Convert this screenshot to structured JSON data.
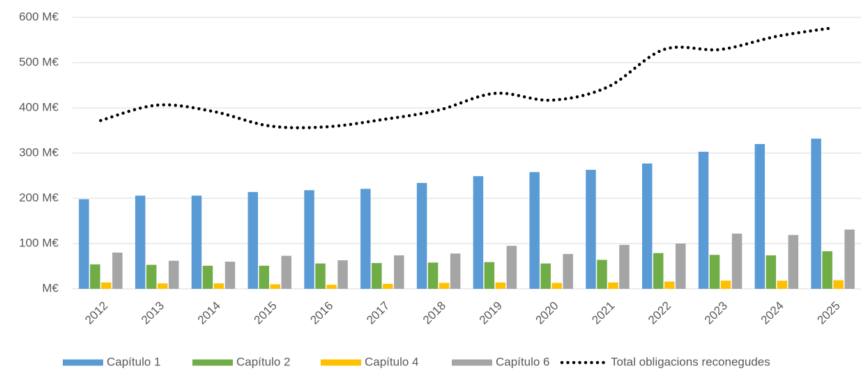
{
  "chart_data": {
    "type": "bar",
    "categories": [
      "2012",
      "2013",
      "2014",
      "2015",
      "2016",
      "2017",
      "2018",
      "2019",
      "2020",
      "2021",
      "2022",
      "2023",
      "2024",
      "2025"
    ],
    "series": [
      {
        "name": "Capítulo 1",
        "color": "#5b9bd5",
        "values": [
          198,
          206,
          206,
          214,
          218,
          221,
          234,
          249,
          258,
          263,
          277,
          303,
          320,
          332
        ]
      },
      {
        "name": "Capítulo 2",
        "color": "#70ad47",
        "values": [
          54,
          53,
          51,
          51,
          56,
          57,
          58,
          59,
          56,
          64,
          79,
          75,
          74,
          83
        ]
      },
      {
        "name": "Capítulo 4",
        "color": "#ffc000",
        "values": [
          14,
          12,
          12,
          10,
          9,
          11,
          13,
          14,
          13,
          14,
          16,
          18,
          18,
          19
        ]
      },
      {
        "name": "Capítulo 6",
        "color": "#a5a5a5",
        "values": [
          80,
          62,
          60,
          73,
          63,
          74,
          78,
          95,
          77,
          97,
          100,
          122,
          119,
          131
        ]
      },
      {
        "name": "Total obligacions reconegudes",
        "type": "line",
        "color": "#000000",
        "values": [
          372,
          406,
          392,
          360,
          358,
          374,
          395,
          432,
          417,
          446,
          529,
          529,
          558,
          577
        ]
      }
    ],
    "ylim": [
      0,
      600
    ],
    "yticks": [
      {
        "value": 0,
        "label": "M€"
      },
      {
        "value": 100,
        "label": "100 M€"
      },
      {
        "value": 200,
        "label": "200 M€"
      },
      {
        "value": 300,
        "label": "300 M€"
      },
      {
        "value": 400,
        "label": "400 M€"
      },
      {
        "value": 500,
        "label": "500 M€"
      },
      {
        "value": 600,
        "label": "600 M€"
      }
    ],
    "grid": true,
    "legend": "bottom"
  }
}
